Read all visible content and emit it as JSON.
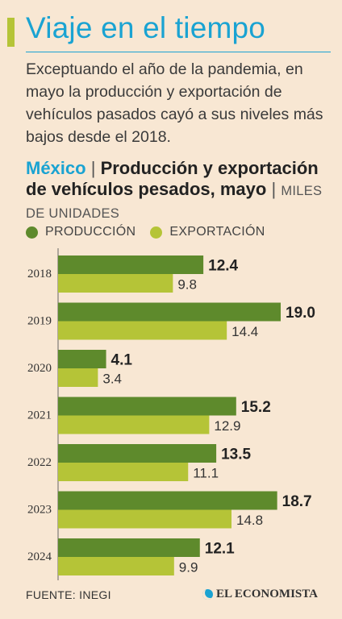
{
  "header": {
    "title": "Viaje en el tiempo",
    "lead": "Exceptuando el año de la pandemia, en mayo la producción y exportación de vehículos pasados cayó a sus niveles más bajos desde el 2018."
  },
  "chart_heading": {
    "country": "México",
    "separator": "|",
    "title": "Producción y exportación de vehículos pesados, mayo",
    "units": "MILES DE UNIDADES"
  },
  "footer": {
    "source": "FUENTE: INEGI",
    "logo": "EL ECONOMISTA"
  },
  "colors": {
    "accent": "#1aa3d2",
    "production": "#5e8a2c",
    "export": "#b5c437",
    "background": "#f8e7d3"
  },
  "chart_data": {
    "type": "bar",
    "orientation": "horizontal",
    "categories": [
      "2018",
      "2019",
      "2020",
      "2021",
      "2022",
      "2023",
      "2024"
    ],
    "series": [
      {
        "name": "PRODUCCIÓN",
        "values": [
          12.4,
          19.0,
          4.1,
          15.2,
          13.5,
          18.7,
          12.1
        ],
        "color": "#5e8a2c"
      },
      {
        "name": "EXPORTACIÓN",
        "values": [
          9.8,
          14.4,
          3.4,
          12.9,
          11.1,
          14.8,
          9.9
        ],
        "color": "#b5c437"
      }
    ],
    "value_labels": {
      "PRODUCCIÓN": [
        "12.4",
        "19.0",
        "4.1",
        "15.2",
        "13.5",
        "18.7",
        "12.1"
      ],
      "EXPORTACIÓN": [
        "9.8",
        "14.4",
        "3.4",
        "12.9",
        "11.1",
        "14.8",
        "9.9"
      ]
    },
    "xlim": [
      0,
      19.0
    ],
    "legend": "top-left",
    "grid": false
  }
}
